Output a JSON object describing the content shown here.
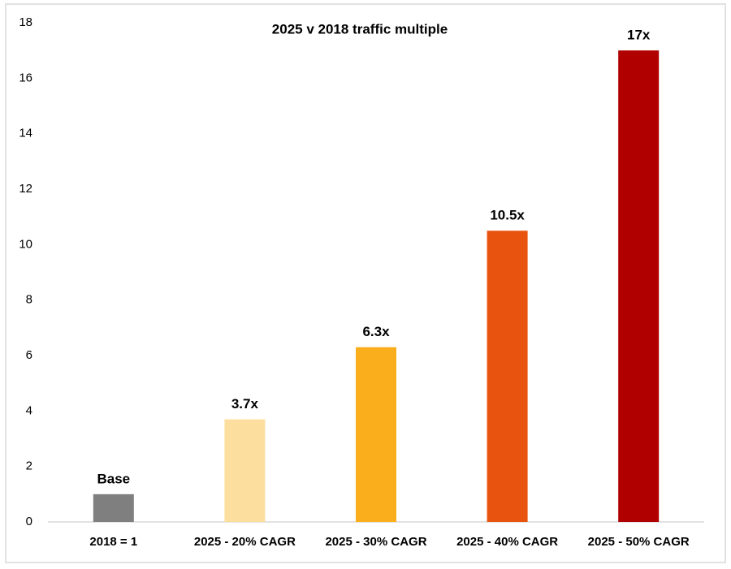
{
  "chart_data": {
    "type": "bar",
    "title": "2025 v 2018 traffic multiple",
    "categories": [
      "2018 = 1",
      "2025 - 20% CAGR",
      "2025 - 30% CAGR",
      "2025 - 40% CAGR",
      "2025 - 50% CAGR"
    ],
    "values": [
      1,
      3.7,
      6.3,
      10.5,
      17
    ],
    "value_labels": [
      "Base",
      "3.7x",
      "6.3x",
      "10.5x",
      "17x"
    ],
    "colors": [
      "#7f7f7f",
      "#fcdf9e",
      "#fbae1b",
      "#e8540f",
      "#b00000"
    ],
    "ylim": [
      0,
      18
    ],
    "yticks": [
      0,
      2,
      4,
      6,
      8,
      10,
      12,
      14,
      16,
      18
    ],
    "grid": false
  }
}
